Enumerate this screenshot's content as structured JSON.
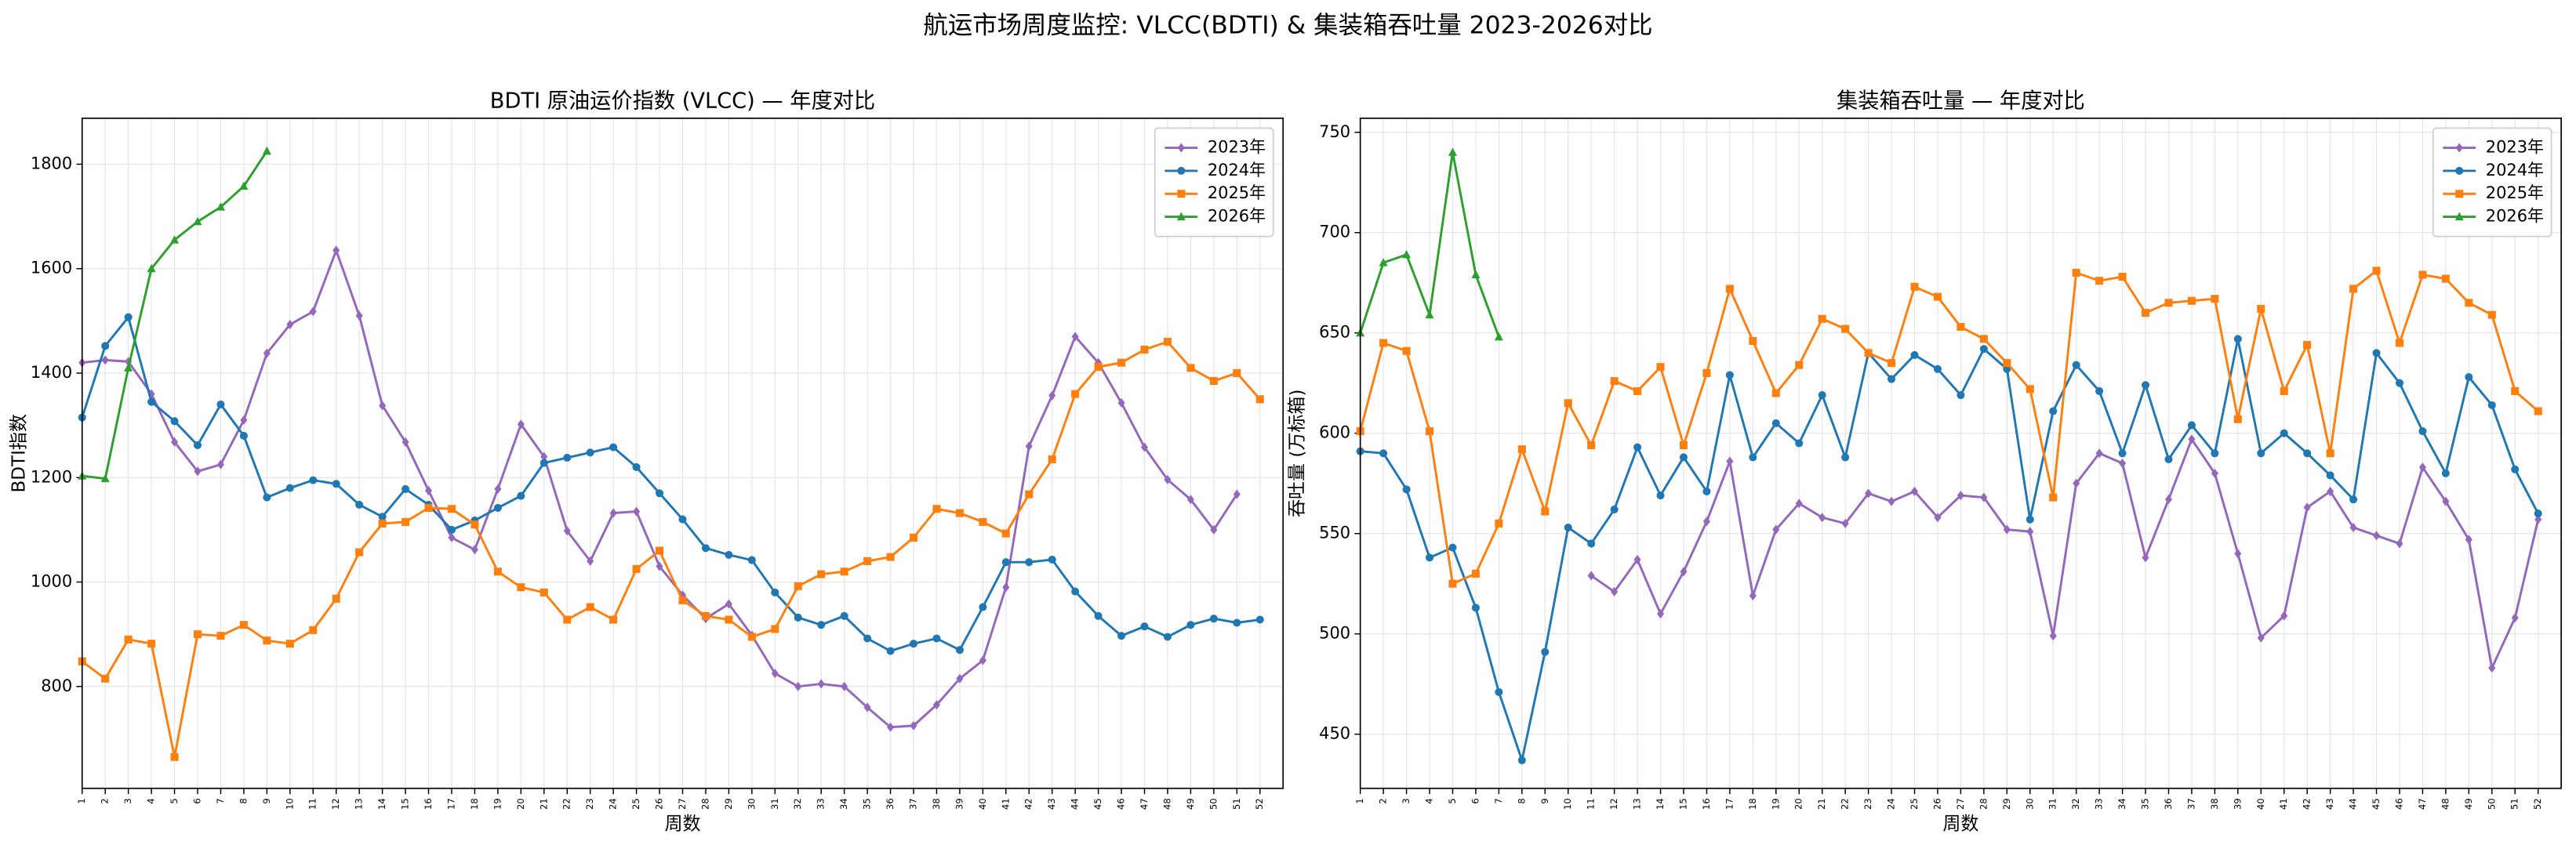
{
  "title": "航运市场周度监控: VLCC(BDTI) & 集装箱吞吐量 2023-2026对比",
  "chart_data": [
    {
      "type": "line",
      "title": "BDTI 原油运价指数 (VLCC) — 年度对比",
      "xlabel": "周数",
      "ylabel": "BDTI指数",
      "x": [
        1,
        2,
        3,
        4,
        5,
        6,
        7,
        8,
        9,
        10,
        11,
        12,
        13,
        14,
        15,
        16,
        17,
        18,
        19,
        20,
        21,
        22,
        23,
        24,
        25,
        26,
        27,
        28,
        29,
        30,
        31,
        32,
        33,
        34,
        35,
        36,
        37,
        38,
        39,
        40,
        41,
        42,
        43,
        44,
        45,
        46,
        47,
        48,
        49,
        50,
        51,
        52
      ],
      "xlim": [
        1,
        53
      ],
      "xticks": [
        1,
        2,
        3,
        4,
        5,
        6,
        7,
        8,
        9,
        10,
        11,
        12,
        13,
        14,
        15,
        16,
        17,
        18,
        19,
        20,
        21,
        22,
        23,
        24,
        25,
        26,
        27,
        28,
        29,
        30,
        31,
        32,
        33,
        34,
        35,
        36,
        37,
        38,
        39,
        40,
        41,
        42,
        43,
        44,
        45,
        46,
        47,
        48,
        49,
        50,
        51,
        52
      ],
      "ylim": [
        605,
        1888
      ],
      "yticks": [
        800,
        1000,
        1200,
        1400,
        1600,
        1800
      ],
      "grid": true,
      "legend": "upper right",
      "series": [
        {
          "name": "2023年",
          "color": "#9467bd",
          "marker": "diamond",
          "values": [
            1420,
            1425,
            1422,
            1360,
            1268,
            1212,
            1225,
            1310,
            1438,
            1493,
            1518,
            1635,
            1510,
            1338,
            1268,
            1175,
            1085,
            1062,
            1178,
            1302,
            1240,
            1098,
            1040,
            1132,
            1135,
            1030,
            975,
            930,
            958,
            898,
            825,
            800,
            805,
            800,
            760,
            722,
            725,
            765,
            815,
            850,
            990,
            1260,
            1357,
            1470,
            1420,
            1343,
            1258,
            1196,
            1158,
            1100,
            1168,
            null
          ]
        },
        {
          "name": "2024年",
          "color": "#1f77b4",
          "marker": "circle",
          "values": [
            1315,
            1452,
            1507,
            1345,
            1308,
            1262,
            1340,
            1280,
            1162,
            1180,
            1195,
            1188,
            1148,
            1125,
            1178,
            1148,
            1100,
            1118,
            1142,
            1165,
            1228,
            1238,
            1248,
            1258,
            1220,
            1170,
            1120,
            1065,
            1052,
            1042,
            980,
            932,
            918,
            935,
            892,
            868,
            882,
            892,
            870,
            952,
            1038,
            1038,
            1043,
            982,
            935,
            897,
            915,
            895,
            918,
            930,
            922,
            928
          ]
        },
        {
          "name": "2025年",
          "color": "#ff7f0e",
          "marker": "square",
          "values": [
            848,
            815,
            890,
            882,
            665,
            900,
            897,
            918,
            888,
            882,
            908,
            968,
            1057,
            1112,
            1115,
            1142,
            1140,
            1110,
            1020,
            990,
            980,
            928,
            952,
            928,
            1025,
            1060,
            965,
            935,
            928,
            895,
            910,
            992,
            1015,
            1020,
            1040,
            1048,
            1085,
            1140,
            1132,
            1115,
            1093,
            1168,
            1235,
            1360,
            1412,
            1420,
            1445,
            1460,
            1410,
            1385,
            1400,
            1350
          ]
        },
        {
          "name": "2026年",
          "color": "#2ca02c",
          "marker": "triangle",
          "values": [
            1203,
            1198,
            1410,
            1600,
            1655,
            1690,
            1718,
            1758,
            1825,
            null,
            null,
            null,
            null,
            null,
            null,
            null,
            null,
            null,
            null,
            null,
            null,
            null,
            null,
            null,
            null,
            null,
            null,
            null,
            null,
            null,
            null,
            null,
            null,
            null,
            null,
            null,
            null,
            null,
            null,
            null,
            null,
            null,
            null,
            null,
            null,
            null,
            null,
            null,
            null,
            null,
            null,
            null
          ]
        }
      ]
    },
    {
      "type": "line",
      "title": "集装箱吞吐量 — 年度对比",
      "xlabel": "周数",
      "ylabel": "吞吐量 (万标箱)",
      "x": [
        1,
        2,
        3,
        4,
        5,
        6,
        7,
        8,
        9,
        10,
        11,
        12,
        13,
        14,
        15,
        16,
        17,
        18,
        19,
        20,
        21,
        22,
        23,
        24,
        25,
        26,
        27,
        28,
        29,
        30,
        31,
        32,
        33,
        34,
        35,
        36,
        37,
        38,
        39,
        40,
        41,
        42,
        43,
        44,
        45,
        46,
        47,
        48,
        49,
        50,
        51,
        52
      ],
      "xlim": [
        1,
        53
      ],
      "xticks": [
        1,
        2,
        3,
        4,
        5,
        6,
        7,
        8,
        9,
        10,
        11,
        12,
        13,
        14,
        15,
        16,
        17,
        18,
        19,
        20,
        21,
        22,
        23,
        24,
        25,
        26,
        27,
        28,
        29,
        30,
        31,
        32,
        33,
        34,
        35,
        36,
        37,
        38,
        39,
        40,
        41,
        42,
        43,
        44,
        45,
        46,
        47,
        48,
        49,
        50,
        51,
        52
      ],
      "ylim": [
        423,
        757
      ],
      "yticks": [
        450,
        500,
        550,
        600,
        650,
        700,
        750
      ],
      "grid": true,
      "legend": "upper right",
      "series": [
        {
          "name": "2023年",
          "color": "#9467bd",
          "marker": "diamond",
          "values": [
            null,
            null,
            null,
            null,
            null,
            null,
            null,
            null,
            null,
            null,
            529,
            521,
            537,
            510,
            531,
            556,
            586,
            519,
            552,
            565,
            558,
            555,
            570,
            566,
            571,
            558,
            569,
            568,
            552,
            551,
            499,
            575,
            590,
            585,
            538,
            567,
            597,
            580,
            540,
            498,
            509,
            563,
            571,
            553,
            549,
            545,
            583,
            566,
            547,
            483,
            508,
            557
          ]
        },
        {
          "name": "2024年",
          "color": "#1f77b4",
          "marker": "circle",
          "values": [
            591,
            590,
            572,
            538,
            543,
            513,
            471,
            437,
            491,
            553,
            545,
            562,
            593,
            569,
            588,
            571,
            629,
            588,
            605,
            595,
            619,
            588,
            640,
            627,
            639,
            632,
            619,
            642,
            632,
            557,
            611,
            634,
            621,
            590,
            624,
            587,
            604,
            590,
            647,
            590,
            600,
            590,
            579,
            567,
            640,
            625,
            601,
            580,
            628,
            614,
            582,
            560
          ]
        },
        {
          "name": "2025年",
          "color": "#ff7f0e",
          "marker": "square",
          "values": [
            601,
            645,
            641,
            601,
            525,
            530,
            555,
            592,
            561,
            615,
            594,
            626,
            621,
            633,
            594,
            630,
            672,
            646,
            620,
            634,
            657,
            652,
            640,
            635,
            673,
            668,
            653,
            647,
            635,
            622,
            568,
            680,
            676,
            678,
            660,
            665,
            666,
            667,
            607,
            662,
            621,
            644,
            590,
            672,
            681,
            645,
            679,
            677,
            665,
            659,
            621,
            611
          ]
        },
        {
          "name": "2026年",
          "color": "#2ca02c",
          "marker": "triangle",
          "values": [
            650,
            685,
            689,
            659,
            740,
            679,
            648,
            null,
            null,
            null,
            null,
            null,
            null,
            null,
            null,
            null,
            null,
            null,
            null,
            null,
            null,
            null,
            null,
            null,
            null,
            null,
            null,
            null,
            null,
            null,
            null,
            null,
            null,
            null,
            null,
            null,
            null,
            null,
            null,
            null,
            null,
            null,
            null,
            null,
            null,
            null,
            null,
            null,
            null,
            null,
            null,
            null
          ]
        }
      ]
    }
  ]
}
